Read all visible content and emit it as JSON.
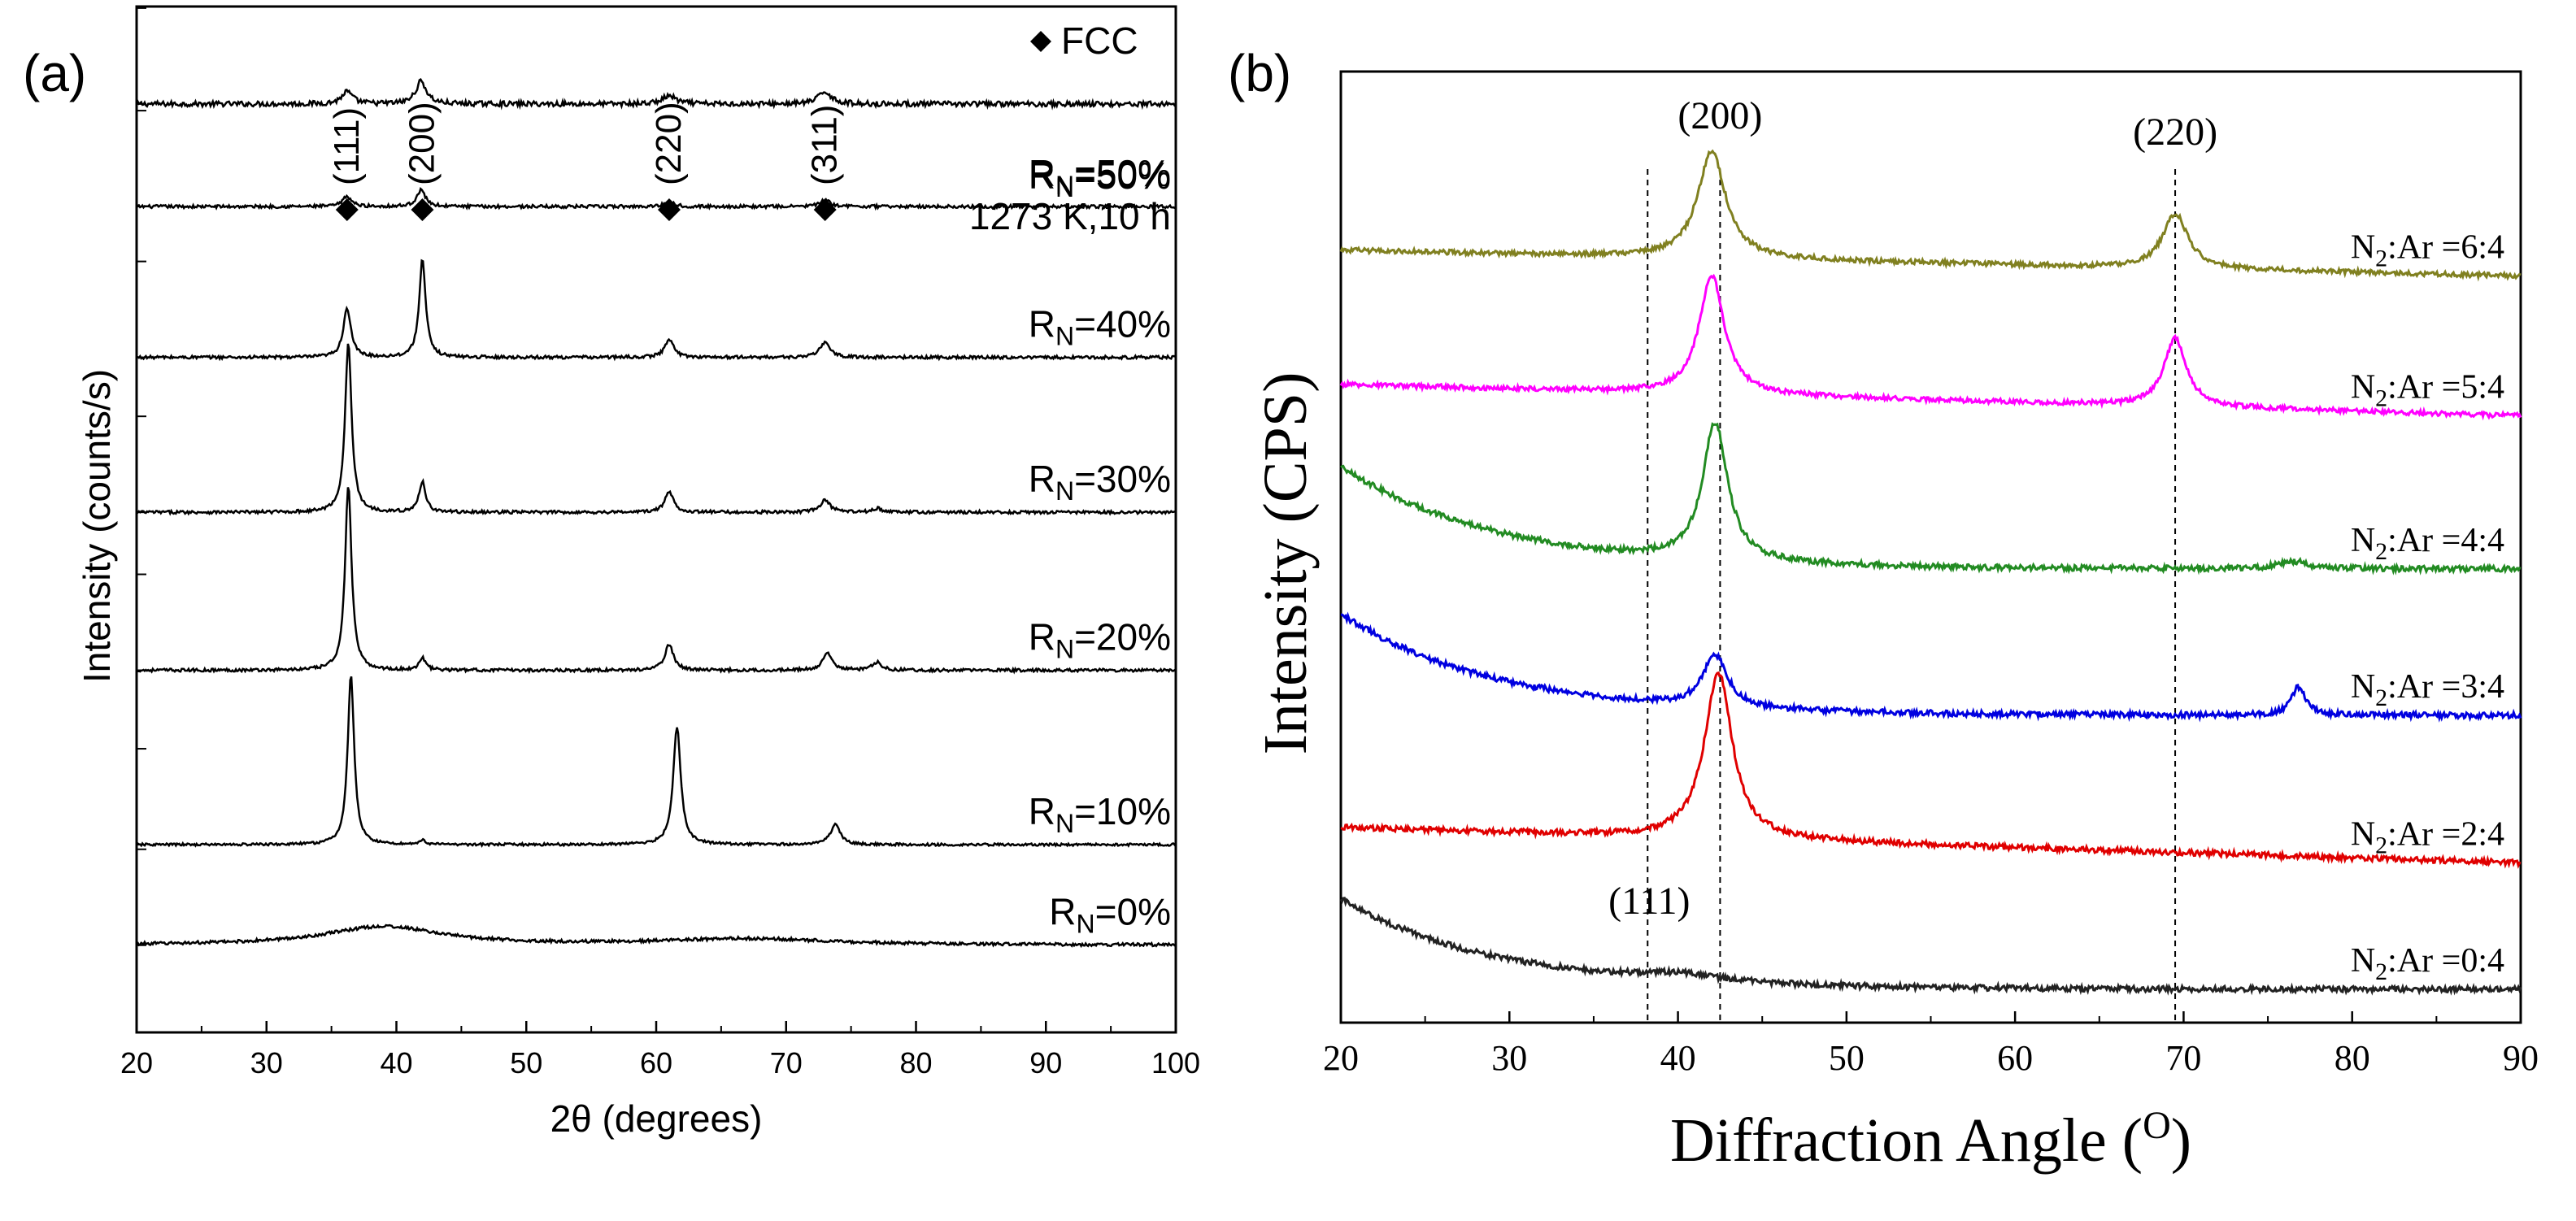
{
  "chart_data": [
    {
      "type": "line",
      "panel_label": "(a)",
      "xlabel": "2θ  (degrees)",
      "ylabel": "Intensity (counts/s)",
      "xlim": [
        20,
        100
      ],
      "x_ticks": [
        20,
        30,
        40,
        50,
        60,
        70,
        80,
        90,
        100
      ],
      "legend_label": "FCC",
      "peak_markers": [
        {
          "label": "(111)",
          "x": 36.2
        },
        {
          "label": "(200)",
          "x": 42.0
        },
        {
          "label": "(220)",
          "x": 61.0
        },
        {
          "label": "(311)",
          "x": 73.0
        }
      ],
      "series": [
        {
          "name": "RN=50% 1273 K,10 h",
          "label_main": "R",
          "label_sub": "N",
          "label_rest": "=50%",
          "label_extra": "1273 K,10 h",
          "color": "#000000",
          "baseline_frac": 0.905,
          "peaks": [
            {
              "x": 36.2,
              "h": 0.012,
              "w": 0.5
            },
            {
              "x": 41.9,
              "h": 0.022,
              "w": 0.5
            },
            {
              "x": 61.0,
              "h": 0.008,
              "w": 0.6
            },
            {
              "x": 73.0,
              "h": 0.012,
              "w": 0.6
            }
          ],
          "noise": 0.0025
        },
        {
          "name": "RN=50%",
          "label_main": "R",
          "label_sub": "N",
          "label_rest": "=50%",
          "label_extra": "",
          "color": "#000000",
          "baseline_frac": 0.805,
          "peaks": [
            {
              "x": 36.2,
              "h": 0.01,
              "w": 0.4
            },
            {
              "x": 41.9,
              "h": 0.016,
              "w": 0.4
            },
            {
              "x": 61.0,
              "h": 0.004,
              "w": 0.5
            },
            {
              "x": 73.0,
              "h": 0.006,
              "w": 0.5
            }
          ],
          "noise": 0.0015
        },
        {
          "name": "RN=40%",
          "label_main": "R",
          "label_sub": "N",
          "label_rest": "=40%",
          "label_extra": "",
          "color": "#000000",
          "baseline_frac": 0.658,
          "peaks": [
            {
              "x": 36.2,
              "h": 0.048,
              "w": 0.35
            },
            {
              "x": 42.0,
              "h": 0.095,
              "w": 0.3
            },
            {
              "x": 61.0,
              "h": 0.018,
              "w": 0.4
            },
            {
              "x": 73.0,
              "h": 0.015,
              "w": 0.45
            }
          ],
          "noise": 0.0015
        },
        {
          "name": "RN=30%",
          "label_main": "R",
          "label_sub": "N",
          "label_rest": "=30%",
          "label_extra": "",
          "color": "#000000",
          "baseline_frac": 0.507,
          "peaks": [
            {
              "x": 36.3,
              "h": 0.165,
              "w": 0.3
            },
            {
              "x": 42.0,
              "h": 0.03,
              "w": 0.3
            },
            {
              "x": 61.0,
              "h": 0.02,
              "w": 0.4
            },
            {
              "x": 73.0,
              "h": 0.012,
              "w": 0.45
            },
            {
              "x": 77.0,
              "h": 0.004,
              "w": 0.4
            }
          ],
          "noise": 0.0015
        },
        {
          "name": "RN=20%",
          "label_main": "R",
          "label_sub": "N",
          "label_rest": "=20%",
          "label_extra": "",
          "color": "#000000",
          "baseline_frac": 0.353,
          "peaks": [
            {
              "x": 36.3,
              "h": 0.18,
              "w": 0.3
            },
            {
              "x": 42.0,
              "h": 0.012,
              "w": 0.3
            },
            {
              "x": 61.0,
              "h": 0.025,
              "w": 0.4
            },
            {
              "x": 73.2,
              "h": 0.016,
              "w": 0.45
            },
            {
              "x": 77.0,
              "h": 0.008,
              "w": 0.4
            }
          ],
          "noise": 0.0015
        },
        {
          "name": "RN=10%",
          "label_main": "R",
          "label_sub": "N",
          "label_rest": "=10%",
          "label_extra": "",
          "color": "#000000",
          "baseline_frac": 0.183,
          "peaks": [
            {
              "x": 36.5,
              "h": 0.165,
              "w": 0.3
            },
            {
              "x": 42.0,
              "h": 0.004,
              "w": 0.3
            },
            {
              "x": 61.6,
              "h": 0.115,
              "w": 0.35
            },
            {
              "x": 73.8,
              "h": 0.02,
              "w": 0.45
            }
          ],
          "noise": 0.0012
        },
        {
          "name": "RN=0%",
          "label_main": "R",
          "label_sub": "N",
          "label_rest": "=0%",
          "label_extra": "",
          "color": "#000000",
          "baseline_frac": 0.085,
          "peaks": [
            {
              "x": 39.0,
              "h": 0.018,
              "w": 5.5
            },
            {
              "x": 67.0,
              "h": 0.006,
              "w": 8.0
            }
          ],
          "noise": 0.0015
        }
      ]
    },
    {
      "type": "line",
      "panel_label": "(b)",
      "xlabel": "Diffraction Angle (",
      "xlabel_sup": "O",
      "xlabel_end": ")",
      "ylabel": "Intensity (CPS)",
      "xlim": [
        20,
        90
      ],
      "x_ticks": [
        20,
        30,
        40,
        50,
        60,
        70,
        80,
        90
      ],
      "reference_lines": [
        38.2,
        42.5,
        69.5
      ],
      "peak_labels": [
        {
          "label": "(200)",
          "x": 42.5
        },
        {
          "label": "(220)",
          "x": 69.5
        },
        {
          "label": "(111)",
          "x": 38.5
        }
      ],
      "series": [
        {
          "name": "N2:Ar =6:4",
          "label_a": "N",
          "label_sub": "2",
          "label_b": ":Ar =6:4",
          "color": "#808020",
          "baseline_start": 0.812,
          "baseline_end": 0.785,
          "peaks": [
            {
              "x": 42.0,
              "h": 0.113,
              "w": 1.0
            },
            {
              "x": 69.5,
              "h": 0.058,
              "w": 0.9
            }
          ],
          "noise": 0.0025,
          "slope": null
        },
        {
          "name": "N2:Ar =5:4",
          "label_a": "N",
          "label_sub": "2",
          "label_b": ":Ar =5:4",
          "color": "#ff00ff",
          "baseline_start": 0.671,
          "baseline_end": 0.638,
          "peaks": [
            {
              "x": 42.0,
              "h": 0.125,
              "w": 0.9
            },
            {
              "x": 69.5,
              "h": 0.072,
              "w": 0.8
            }
          ],
          "noise": 0.0025,
          "slope": null
        },
        {
          "name": "N2:Ar =4:4",
          "label_a": "N",
          "label_sub": "2",
          "label_b": ":Ar =4:4",
          "color": "#228b22",
          "baseline_start": 0.585,
          "baseline_end": 0.477,
          "peaks": [
            {
              "x": 42.2,
              "h": 0.145,
              "w": 0.9
            },
            {
              "x": 76.5,
              "h": 0.008,
              "w": 1.0
            }
          ],
          "noise": 0.003,
          "slope": "decay"
        },
        {
          "name": "N2:Ar =3:4",
          "label_a": "N",
          "label_sub": "2",
          "label_b": ":Ar =3:4",
          "color": "#0000e0",
          "baseline_start": 0.43,
          "baseline_end": 0.323,
          "peaks": [
            {
              "x": 42.2,
              "h": 0.055,
              "w": 0.9
            },
            {
              "x": 76.8,
              "h": 0.03,
              "w": 0.5
            }
          ],
          "noise": 0.003,
          "slope": "decay"
        },
        {
          "name": "N2:Ar =2:4",
          "label_a": "N",
          "label_sub": "2",
          "label_b": ":Ar =2:4",
          "color": "#e00000",
          "baseline_start": 0.205,
          "baseline_end": 0.168,
          "peaks": [
            {
              "x": 42.4,
              "h": 0.175,
              "w": 1.0
            }
          ],
          "noise": 0.003,
          "slope": null
        },
        {
          "name": "N2:Ar =0:4",
          "label_a": "N",
          "label_sub": "2",
          "label_b": ":Ar =0:4",
          "color": "#222222",
          "baseline_start": 0.13,
          "baseline_end": 0.035,
          "peaks": [
            {
              "x": 40.0,
              "h": 0.008,
              "w": 3.0
            }
          ],
          "noise": 0.003,
          "slope": "decay"
        }
      ]
    }
  ]
}
